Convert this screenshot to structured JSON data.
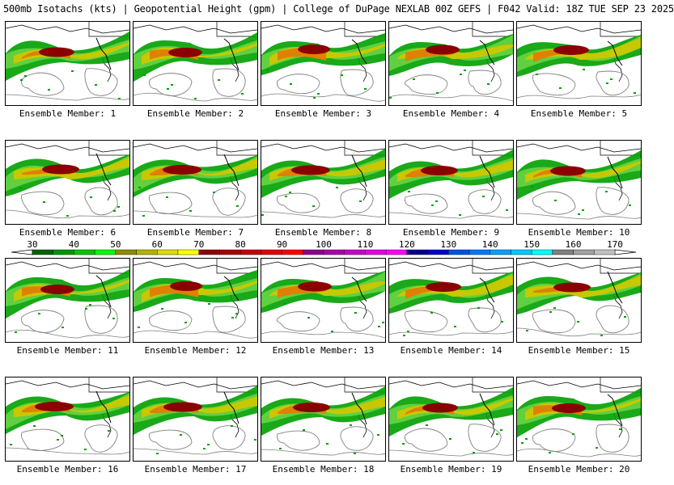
{
  "title": "500mb Isotachs (kts) | Geopotential Height (gpm) | College of DuPage NEXLAB   00Z GEFS | F042 Valid: 18Z TUE SEP 23 2025",
  "label_prefix": "Ensemble Member: ",
  "members": [
    "1",
    "2",
    "3",
    "4",
    "5",
    "6",
    "7",
    "8",
    "9",
    "10",
    "11",
    "12",
    "13",
    "14",
    "15",
    "16",
    "17",
    "18",
    "19",
    "20"
  ],
  "colorbar": {
    "ticks": [
      "30",
      "40",
      "50",
      "60",
      "70",
      "80",
      "90",
      "100",
      "110",
      "120",
      "130",
      "140",
      "150",
      "160",
      "170"
    ],
    "colors": [
      "#006400",
      "#009600",
      "#00c800",
      "#00ff00",
      "#8c8c00",
      "#b4b400",
      "#dcdc00",
      "#ffff00",
      "#8b0000",
      "#aa0000",
      "#c80000",
      "#e60000",
      "#ff0000",
      "#8b008b",
      "#aa00aa",
      "#c800c8",
      "#e600e6",
      "#ff00ff",
      "#00008b",
      "#0000cd",
      "#0050e6",
      "#0078ff",
      "#00a0ff",
      "#00c8ff",
      "#00ffff",
      "#808080",
      "#a0a0a0",
      "#c0c0c0"
    ]
  },
  "shading": {
    "outer": "#00a000",
    "light": "#60d040",
    "mid": "#c8c800",
    "warm": "#e08000",
    "core": "#8b0000",
    "contour": "#808080",
    "coast": "#000000"
  }
}
